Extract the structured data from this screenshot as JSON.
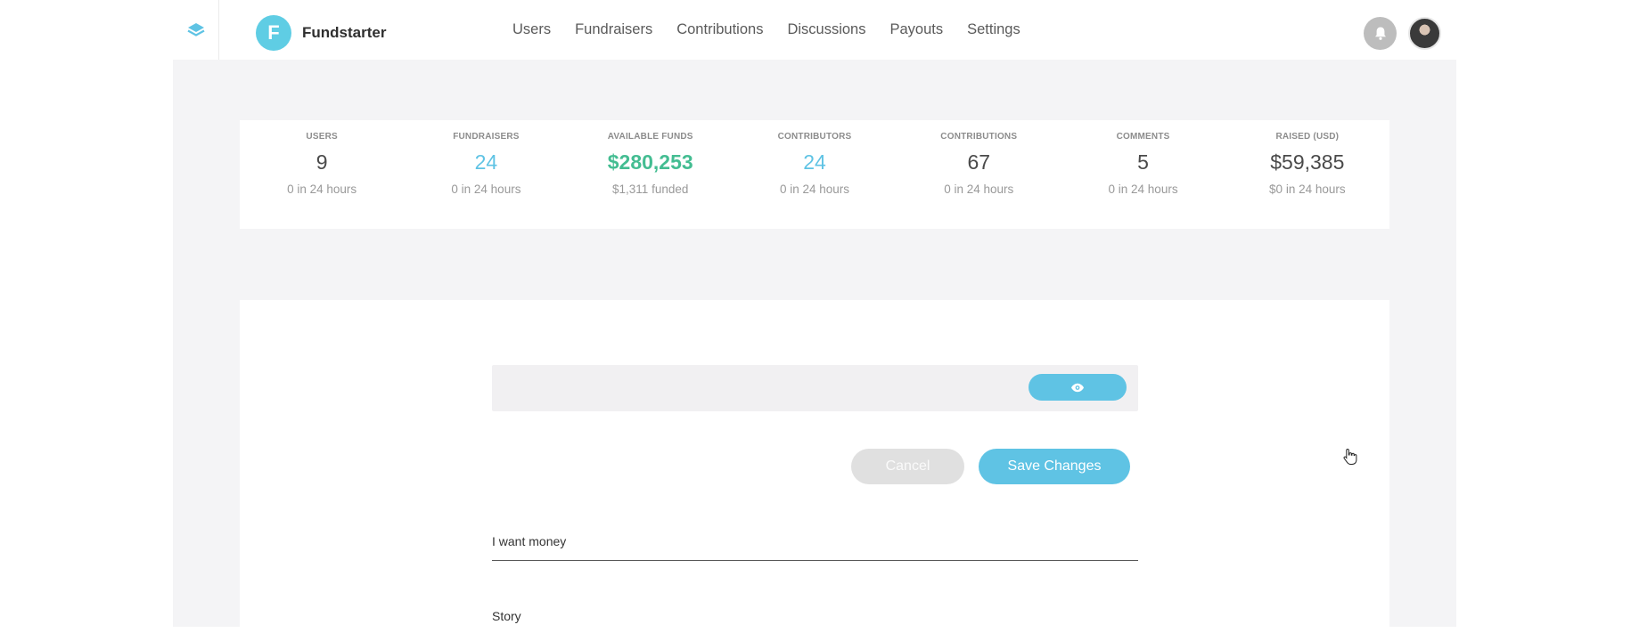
{
  "header": {
    "layers_icon": "layers-icon",
    "brand_initial": "F",
    "brand_name": "Fundstarter",
    "nav": [
      "Users",
      "Fundraisers",
      "Contributions",
      "Discussions",
      "Payouts",
      "Settings"
    ],
    "bell_icon": "bell-icon",
    "avatar": "user-avatar"
  },
  "stats": [
    {
      "label": "USERS",
      "value": "9",
      "sub": "0 in 24 hours"
    },
    {
      "label": "FUNDRAISERS",
      "value": "24",
      "sub": "0 in 24 hours"
    },
    {
      "label": "AVAILABLE FUNDS",
      "value": "$280,253",
      "sub": "$1,311 funded"
    },
    {
      "label": "CONTRIBUTORS",
      "value": "24",
      "sub": "0 in 24 hours"
    },
    {
      "label": "CONTRIBUTIONS",
      "value": "67",
      "sub": "0 in 24 hours"
    },
    {
      "label": "COMMENTS",
      "value": "5",
      "sub": "0 in 24 hours"
    },
    {
      "label": "RAISED (USD)",
      "value": "$59,385",
      "sub": "$0 in 24 hours"
    }
  ],
  "form": {
    "preview_icon": "eye-icon",
    "cancel_label": "Cancel",
    "save_label": "Save Changes",
    "title_value": "I want money",
    "story_label": "Story"
  },
  "colors": {
    "accent": "#5fc3e4",
    "funds_green": "#44bd92",
    "page_bg": "#f4f4f6"
  }
}
